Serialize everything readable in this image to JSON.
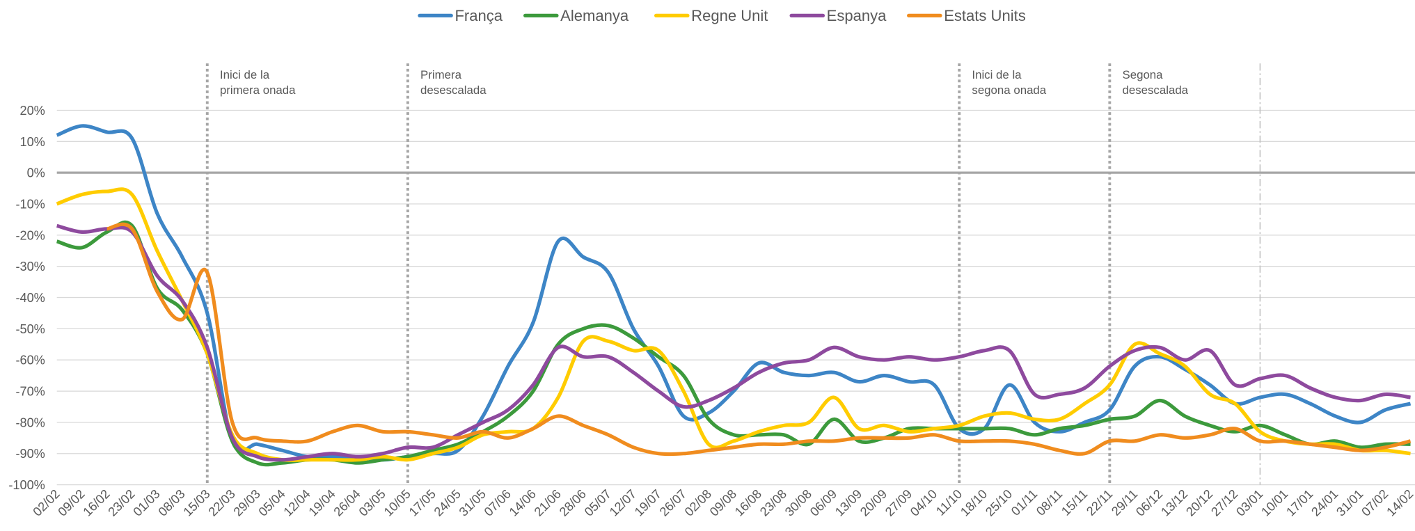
{
  "chart_data": {
    "type": "line",
    "categories": [
      "02/02",
      "09/02",
      "16/02",
      "23/02",
      "01/03",
      "08/03",
      "15/03",
      "22/03",
      "29/03",
      "05/04",
      "12/04",
      "19/04",
      "26/04",
      "03/05",
      "10/05",
      "17/05",
      "24/05",
      "31/05",
      "07/06",
      "14/06",
      "21/06",
      "28/06",
      "05/07",
      "12/07",
      "19/07",
      "26/07",
      "02/08",
      "09/08",
      "16/08",
      "23/08",
      "30/08",
      "06/09",
      "13/09",
      "20/09",
      "27/09",
      "04/10",
      "11/10",
      "18/10",
      "25/10",
      "01/11",
      "08/11",
      "15/11",
      "22/11",
      "29/11",
      "06/12",
      "13/12",
      "20/12",
      "27/12",
      "03/01",
      "10/01",
      "17/01",
      "24/01",
      "31/01",
      "07/02",
      "14/02"
    ],
    "series": [
      {
        "name": "França",
        "color": "#3d85c6",
        "values": [
          12,
          15,
          13,
          11,
          -13,
          -27,
          -45,
          -86,
          -87,
          -89,
          -91,
          -91,
          -91,
          -92,
          -91,
          -90,
          -89,
          -78,
          -62,
          -48,
          -22,
          -27,
          -32,
          -50,
          -62,
          -78,
          -77,
          -70,
          -61,
          -64,
          -65,
          -64,
          -67,
          -65,
          -67,
          -68,
          -82,
          -82,
          -68,
          -80,
          -83,
          -80,
          -76,
          -62,
          -59,
          -63,
          -68,
          -74,
          -72,
          -71,
          -74,
          -78,
          -80,
          -76,
          -74
        ]
      },
      {
        "name": "Alemanya",
        "color": "#3c9a3c",
        "values": [
          -22,
          -24,
          -19,
          -17,
          -37,
          -44,
          -58,
          -86,
          -93,
          -93,
          -92,
          -92,
          -93,
          -92,
          -91,
          -89,
          -87,
          -83,
          -78,
          -70,
          -55,
          -50,
          -49,
          -53,
          -59,
          -65,
          -79,
          -84,
          -84,
          -84,
          -87,
          -79,
          -86,
          -85,
          -82,
          -82,
          -82,
          -82,
          -82,
          -84,
          -82,
          -81,
          -79,
          -78,
          -73,
          -78,
          -81,
          -83,
          -81,
          -84,
          -87,
          -86,
          -88,
          -87,
          -87
        ]
      },
      {
        "name": "Regne Unit",
        "color": "#ffcc00",
        "values": [
          -10,
          -7,
          -6,
          -7,
          -25,
          -41,
          -58,
          -84,
          -90,
          -92,
          -92,
          -92,
          -92,
          -91,
          -92,
          -90,
          -88,
          -84,
          -83,
          -82,
          -72,
          -54,
          -54,
          -57,
          -57,
          -70,
          -87,
          -86,
          -83,
          -81,
          -80,
          -72,
          -82,
          -81,
          -83,
          -82,
          -81,
          -78,
          -77,
          -79,
          -79,
          -74,
          -68,
          -55,
          -58,
          -62,
          -71,
          -74,
          -83,
          -86,
          -87,
          -87,
          -89,
          -89,
          -90
        ]
      },
      {
        "name": "Espanya",
        "color": "#8e4a9e",
        "values": [
          -17,
          -19,
          -18,
          -19,
          -33,
          -41,
          -56,
          -85,
          -91,
          -92,
          -91,
          -90,
          -91,
          -90,
          -88,
          -88,
          -84,
          -80,
          -76,
          -68,
          -56,
          -59,
          -59,
          -64,
          -70,
          -75,
          -73,
          -69,
          -64,
          -61,
          -60,
          -56,
          -59,
          -60,
          -59,
          -60,
          -59,
          -57,
          -57,
          -71,
          -71,
          -69,
          -62,
          -57,
          -56,
          -60,
          -57,
          -68,
          -66,
          -65,
          -69,
          -72,
          -73,
          -71,
          -72
        ]
      },
      {
        "name": "Estats Units",
        "color": "#f08c1e",
        "values": [
          null,
          null,
          -18,
          -18,
          -38,
          -47,
          -32,
          -80,
          -85,
          -86,
          -86,
          -83,
          -81,
          -83,
          -83,
          -84,
          -85,
          -83,
          -85,
          -82,
          -78,
          -81,
          -84,
          -88,
          -90,
          -90,
          -89,
          -88,
          -87,
          -87,
          -86,
          -86,
          -85,
          -85,
          -85,
          -84,
          -86,
          -86,
          -86,
          -87,
          -89,
          -90,
          -86,
          -86,
          -84,
          -85,
          -84,
          -82,
          -86,
          -86,
          -87,
          -88,
          -89,
          -88,
          -86
        ]
      }
    ],
    "ylim": [
      -100,
      20
    ],
    "yticks": [
      {
        "value": -100,
        "label": "-100%"
      },
      {
        "value": -90,
        "label": "-90%"
      },
      {
        "value": -80,
        "label": "-80%"
      },
      {
        "value": -70,
        "label": "-70%"
      },
      {
        "value": -60,
        "label": "-60%"
      },
      {
        "value": -50,
        "label": "-50%"
      },
      {
        "value": -40,
        "label": "-40%"
      },
      {
        "value": -30,
        "label": "-30%"
      },
      {
        "value": -20,
        "label": "-20%"
      },
      {
        "value": -10,
        "label": "-10%"
      },
      {
        "value": 0,
        "label": "0%"
      },
      {
        "value": 10,
        "label": "10%"
      },
      {
        "value": 20,
        "label": "20%"
      }
    ],
    "grid": true,
    "legend": "top",
    "annotations": [
      {
        "x": "15/03",
        "lines": [
          "Inici  de la",
          "primera onada"
        ],
        "style": "dotted"
      },
      {
        "x": "10/05",
        "lines": [
          "Primera",
          "desescalada"
        ],
        "style": "dotted"
      },
      {
        "x": "11/10",
        "lines": [
          "Inici de la",
          "segona onada"
        ],
        "style": "dotted"
      },
      {
        "x": "22/11",
        "lines": [
          "Segona",
          "desescalada"
        ],
        "style": "dotted"
      },
      {
        "x": "03/01",
        "lines": [],
        "style": "dashdot"
      }
    ]
  }
}
